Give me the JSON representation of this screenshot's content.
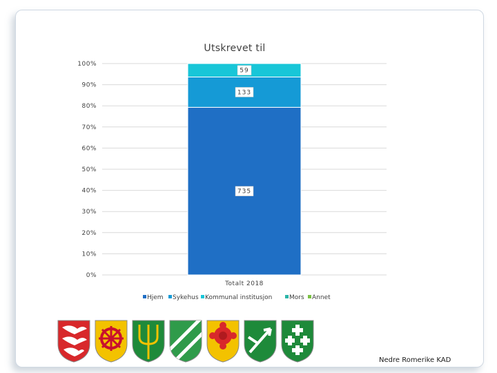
{
  "chart_data": {
    "type": "bar",
    "stacked": "percent",
    "title": "Utskrevet til",
    "categories": [
      "Totalt 2018"
    ],
    "series": [
      {
        "name": "Hjem",
        "values": [
          735
        ],
        "color": "#1f6fc5"
      },
      {
        "name": "Sykehus",
        "values": [
          133
        ],
        "color": "#159ad6"
      },
      {
        "name": "Kommunal institusjon",
        "values": [
          59
        ],
        "color": "#18c6d8"
      },
      {
        "name": "Mors",
        "values": [
          0
        ],
        "color": "#2bb5a8"
      },
      {
        "name": "Annet",
        "values": [
          0
        ],
        "color": "#7ac143"
      }
    ],
    "data_labels": [
      "735",
      "133",
      "59"
    ],
    "y_ticks": [
      "0%",
      "10%",
      "20%",
      "30%",
      "40%",
      "50%",
      "60%",
      "70%",
      "80%",
      "90%",
      "100%"
    ],
    "ylim": [
      0,
      1
    ],
    "grid": true,
    "legend_position": "bottom"
  },
  "footer": {
    "text": "Nedre Romerike KAD"
  },
  "logos": {
    "icons": [
      "coat-of-arms-1",
      "coat-of-arms-2",
      "coat-of-arms-3",
      "coat-of-arms-4",
      "coat-of-arms-5",
      "coat-of-arms-6",
      "coat-of-arms-7"
    ]
  }
}
